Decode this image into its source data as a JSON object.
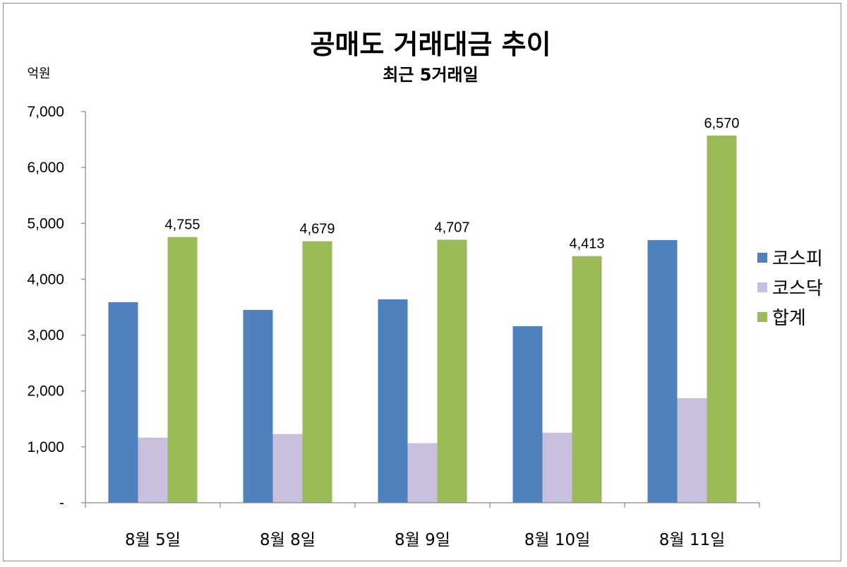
{
  "chart_data": {
    "type": "bar",
    "title": "공매도 거래대금 추이",
    "subtitle": "최근 5거래일",
    "ylabel": "억원",
    "ylim": [
      0,
      7000
    ],
    "yticks": [
      0,
      1000,
      2000,
      3000,
      4000,
      5000,
      6000,
      7000
    ],
    "ytick_labels": [
      "-",
      "1,000",
      "2,000",
      "3,000",
      "4,000",
      "5,000",
      "6,000",
      "7,000"
    ],
    "categories": [
      "8월 5일",
      "8월 8일",
      "8월 9일",
      "8월 10일",
      "8월 11일"
    ],
    "series": [
      {
        "name": "코스피",
        "color": "#4F81BD",
        "values": [
          3590,
          3450,
          3640,
          3160,
          4700
        ]
      },
      {
        "name": "코스닥",
        "color": "#C8C0DC",
        "values": [
          1165,
          1229,
          1067,
          1253,
          1870
        ]
      },
      {
        "name": "합계",
        "color": "#9BBB59",
        "values": [
          4755,
          4679,
          4707,
          4413,
          6570
        ],
        "data_labels": [
          "4,755",
          "4,679",
          "4,707",
          "4,413",
          "6,570"
        ]
      }
    ],
    "legend_position": "right",
    "grid": false
  }
}
